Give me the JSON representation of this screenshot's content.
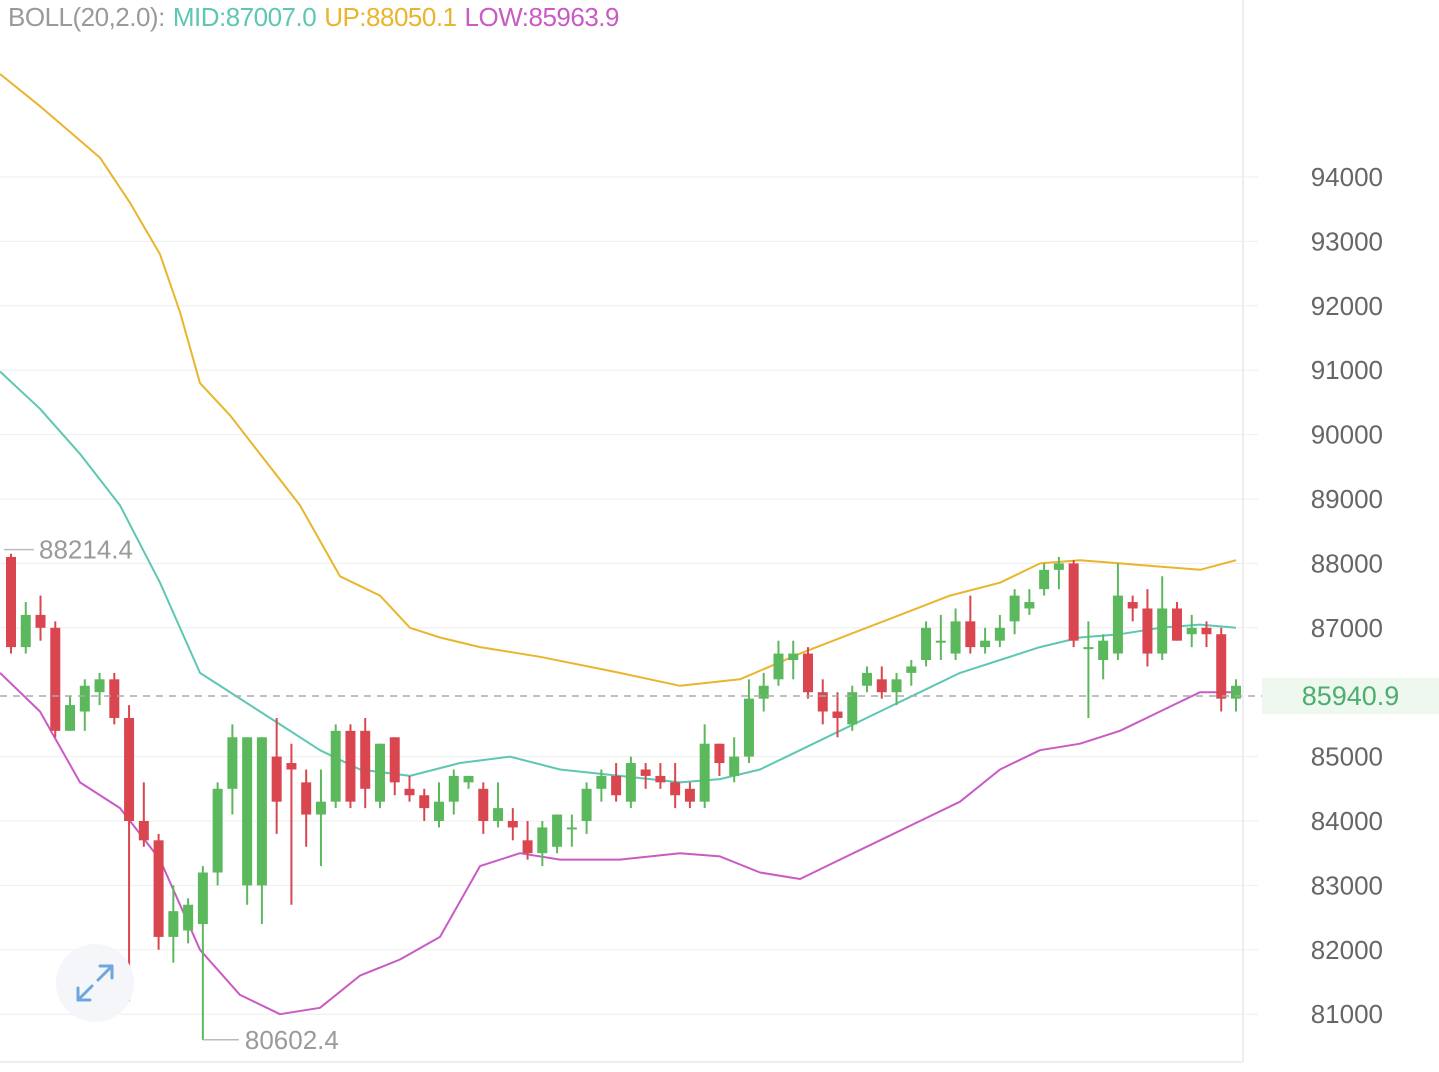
{
  "indicator": {
    "name": "BOLL(20,2.0):",
    "mid": "MID:87007.0",
    "up": "UP:88050.1",
    "low": "LOW:85963.9"
  },
  "current_price": "85940.9",
  "colors": {
    "up_candle": "#5cb85c",
    "down_candle": "#d9464f",
    "mid": "#5ec7b3",
    "upper": "#e8b52d",
    "lower": "#c85bc4",
    "grid": "#eeeeee",
    "price_line": "#aaaaaa"
  },
  "icons": {
    "expand": "expand-arrows-icon"
  },
  "chart_data": {
    "type": "candlestick",
    "y_ticks": [
      "94000",
      "93000",
      "92000",
      "91000",
      "90000",
      "89000",
      "88000",
      "87000",
      "85000",
      "84000",
      "83000",
      "82000",
      "81000"
    ],
    "ylim": [
      80400,
      95500
    ],
    "grid": true,
    "high_marker": "88214.4",
    "low_marker": "80602.4",
    "candles": [
      [
        88100,
        88150,
        86600,
        86700
      ],
      [
        86700,
        87400,
        86600,
        87200
      ],
      [
        87200,
        87500,
        86800,
        87000
      ],
      [
        87000,
        87100,
        85300,
        85400
      ],
      [
        85400,
        85950,
        85400,
        85800
      ],
      [
        85700,
        86200,
        85400,
        86100
      ],
      [
        86000,
        86300,
        85800,
        86200
      ],
      [
        86200,
        86300,
        85500,
        85600
      ],
      [
        85600,
        85800,
        81200,
        84000
      ],
      [
        84000,
        84600,
        83600,
        83700
      ],
      [
        83700,
        83800,
        82000,
        82200
      ],
      [
        82200,
        83000,
        81800,
        82600
      ],
      [
        82300,
        82800,
        82100,
        82700
      ],
      [
        82400,
        83300,
        80600,
        83200
      ],
      [
        83200,
        84600,
        83000,
        84500
      ],
      [
        84500,
        85500,
        84100,
        85300
      ],
      [
        83000,
        85300,
        82700,
        85300
      ],
      [
        83000,
        85300,
        82400,
        85300
      ],
      [
        85000,
        85600,
        83800,
        84300
      ],
      [
        84900,
        85200,
        82700,
        84800
      ],
      [
        84600,
        84800,
        83600,
        84100
      ],
      [
        84100,
        84800,
        83300,
        84300
      ],
      [
        84300,
        85500,
        84200,
        85400
      ],
      [
        85400,
        85500,
        84200,
        84300
      ],
      [
        85400,
        85600,
        84200,
        84500
      ],
      [
        84300,
        85200,
        84200,
        85200
      ],
      [
        85300,
        85300,
        84400,
        84600
      ],
      [
        84500,
        84700,
        84300,
        84400
      ],
      [
        84400,
        84500,
        84000,
        84200
      ],
      [
        84000,
        84600,
        83900,
        84300
      ],
      [
        84300,
        84800,
        84100,
        84700
      ],
      [
        84600,
        84700,
        84500,
        84700
      ],
      [
        84500,
        84600,
        83800,
        84000
      ],
      [
        84000,
        84600,
        83900,
        84200
      ],
      [
        84000,
        84200,
        83700,
        83900
      ],
      [
        83700,
        84000,
        83400,
        83500
      ],
      [
        83500,
        84000,
        83300,
        83900
      ],
      [
        83600,
        84100,
        83500,
        84100
      ],
      [
        83900,
        84100,
        83600,
        83900
      ],
      [
        84000,
        84600,
        83800,
        84500
      ],
      [
        84500,
        84800,
        84300,
        84700
      ],
      [
        84700,
        84900,
        84300,
        84400
      ],
      [
        84300,
        85000,
        84200,
        84900
      ],
      [
        84800,
        84900,
        84500,
        84700
      ],
      [
        84700,
        84900,
        84500,
        84600
      ],
      [
        84600,
        84900,
        84200,
        84400
      ],
      [
        84500,
        84600,
        84200,
        84300
      ],
      [
        84300,
        85500,
        84200,
        85200
      ],
      [
        85200,
        85200,
        84700,
        84900
      ],
      [
        84700,
        85300,
        84600,
        85000
      ],
      [
        85000,
        86200,
        84900,
        85900
      ],
      [
        85900,
        86300,
        85700,
        86100
      ],
      [
        86200,
        86800,
        86100,
        86600
      ],
      [
        86500,
        86800,
        86200,
        86600
      ],
      [
        86600,
        86700,
        85900,
        86000
      ],
      [
        86000,
        86200,
        85500,
        85700
      ],
      [
        85700,
        86000,
        85300,
        85600
      ],
      [
        85500,
        86100,
        85400,
        86000
      ],
      [
        86100,
        86400,
        86000,
        86300
      ],
      [
        86200,
        86400,
        85900,
        86000
      ],
      [
        86000,
        86300,
        85800,
        86200
      ],
      [
        86300,
        86500,
        86100,
        86400
      ],
      [
        86500,
        87100,
        86400,
        87000
      ],
      [
        86800,
        87200,
        86500,
        86800
      ],
      [
        86600,
        87300,
        86500,
        87100
      ],
      [
        87100,
        87500,
        86600,
        86700
      ],
      [
        86700,
        87000,
        86600,
        86800
      ],
      [
        86800,
        87200,
        86700,
        87000
      ],
      [
        87100,
        87600,
        86900,
        87500
      ],
      [
        87300,
        87600,
        87200,
        87400
      ],
      [
        87600,
        88000,
        87500,
        87900
      ],
      [
        87900,
        88100,
        87600,
        88000
      ],
      [
        88000,
        88050,
        86700,
        86800
      ],
      [
        86700,
        87100,
        85600,
        86700
      ],
      [
        86500,
        86900,
        86200,
        86800
      ],
      [
        86600,
        88000,
        86500,
        87500
      ],
      [
        87400,
        87500,
        87100,
        87300
      ],
      [
        87300,
        87600,
        86400,
        86600
      ],
      [
        86600,
        87800,
        86500,
        87300
      ],
      [
        87300,
        87400,
        86800,
        86800
      ],
      [
        86900,
        87200,
        86700,
        87000
      ],
      [
        87000,
        87100,
        86700,
        86900
      ],
      [
        86900,
        87000,
        85700,
        85900
      ],
      [
        85900,
        86200,
        85700,
        86100
      ]
    ],
    "series": [
      {
        "name": "MID",
        "values": [
          [
            0,
            90980
          ],
          [
            40,
            90400
          ],
          [
            80,
            89700
          ],
          [
            120,
            88900
          ],
          [
            160,
            87700
          ],
          [
            200,
            86300
          ],
          [
            240,
            85900
          ],
          [
            280,
            85500
          ],
          [
            320,
            85100
          ],
          [
            360,
            84800
          ],
          [
            410,
            84700
          ],
          [
            460,
            84900
          ],
          [
            510,
            85000
          ],
          [
            560,
            84800
          ],
          [
            620,
            84700
          ],
          [
            680,
            84600
          ],
          [
            720,
            84650
          ],
          [
            760,
            84800
          ],
          [
            800,
            85100
          ],
          [
            840,
            85400
          ],
          [
            880,
            85700
          ],
          [
            920,
            86000
          ],
          [
            960,
            86300
          ],
          [
            1000,
            86500
          ],
          [
            1040,
            86700
          ],
          [
            1080,
            86850
          ],
          [
            1120,
            86900
          ],
          [
            1160,
            87000
          ],
          [
            1200,
            87050
          ],
          [
            1236,
            87000
          ]
        ]
      },
      {
        "name": "UP",
        "values": [
          [
            0,
            95600
          ],
          [
            40,
            95100
          ],
          [
            70,
            94700
          ],
          [
            100,
            94300
          ],
          [
            130,
            93600
          ],
          [
            160,
            92800
          ],
          [
            180,
            91900
          ],
          [
            200,
            90800
          ],
          [
            230,
            90300
          ],
          [
            270,
            89500
          ],
          [
            300,
            88900
          ],
          [
            340,
            87800
          ],
          [
            380,
            87500
          ],
          [
            410,
            87000
          ],
          [
            440,
            86850
          ],
          [
            480,
            86700
          ],
          [
            540,
            86550
          ],
          [
            620,
            86300
          ],
          [
            680,
            86100
          ],
          [
            740,
            86200
          ],
          [
            800,
            86600
          ],
          [
            850,
            86900
          ],
          [
            900,
            87200
          ],
          [
            950,
            87500
          ],
          [
            1000,
            87700
          ],
          [
            1040,
            88000
          ],
          [
            1080,
            88050
          ],
          [
            1120,
            88000
          ],
          [
            1160,
            87950
          ],
          [
            1200,
            87900
          ],
          [
            1236,
            88050
          ]
        ]
      },
      {
        "name": "LOW",
        "values": [
          [
            0,
            86300
          ],
          [
            40,
            85700
          ],
          [
            80,
            84600
          ],
          [
            120,
            84200
          ],
          [
            160,
            83400
          ],
          [
            200,
            82000
          ],
          [
            240,
            81300
          ],
          [
            280,
            81000
          ],
          [
            320,
            81100
          ],
          [
            360,
            81600
          ],
          [
            400,
            81850
          ],
          [
            440,
            82200
          ],
          [
            480,
            83300
          ],
          [
            520,
            83500
          ],
          [
            560,
            83400
          ],
          [
            620,
            83400
          ],
          [
            680,
            83500
          ],
          [
            720,
            83450
          ],
          [
            760,
            83200
          ],
          [
            800,
            83100
          ],
          [
            840,
            83400
          ],
          [
            880,
            83700
          ],
          [
            920,
            84000
          ],
          [
            960,
            84300
          ],
          [
            1000,
            84800
          ],
          [
            1040,
            85100
          ],
          [
            1080,
            85200
          ],
          [
            1120,
            85400
          ],
          [
            1160,
            85700
          ],
          [
            1200,
            86000
          ],
          [
            1236,
            86000
          ]
        ]
      }
    ]
  }
}
